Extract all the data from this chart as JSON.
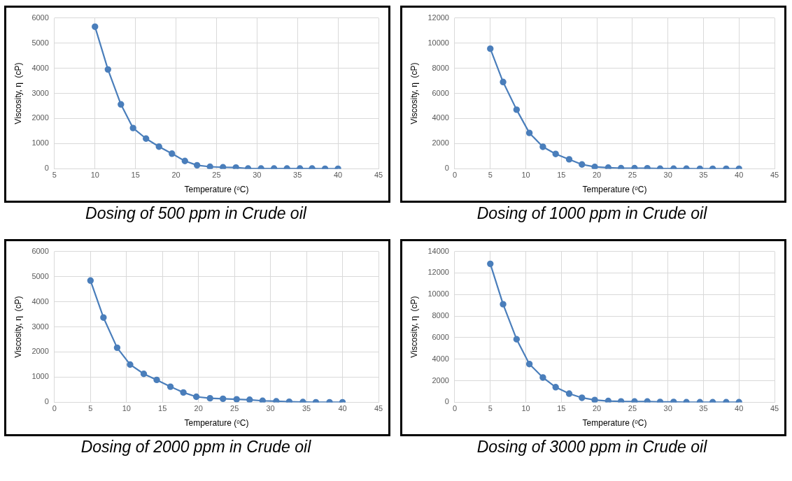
{
  "chart_data": [
    {
      "type": "line",
      "title": "Dosing of 500 ppm in Crude oil",
      "xlabel": "Temperature (ᵒC)",
      "ylabel": "Viscosity, η  (cP)",
      "x": [
        10,
        11.6,
        13.2,
        14.7,
        16.3,
        17.9,
        19.5,
        21.1,
        22.6,
        24.2,
        25.8,
        27.4,
        28.9,
        30.5,
        32.1,
        33.7,
        35.3,
        36.8,
        38.4,
        40
      ],
      "series": [
        {
          "color": "#4a7ebb",
          "values": [
            5650,
            3950,
            2560,
            1620,
            1200,
            880,
            600,
            310,
            140,
            80,
            60,
            50,
            10,
            10,
            10,
            10,
            10,
            10,
            0,
            0
          ]
        }
      ],
      "xlim": [
        5,
        45
      ],
      "xticks": [
        5,
        10,
        15,
        20,
        25,
        30,
        35,
        40,
        45
      ],
      "ylim": [
        0,
        6000
      ],
      "yticks": [
        0,
        1000,
        2000,
        3000,
        4000,
        5000,
        6000
      ],
      "grid": true,
      "legend": false,
      "marker": "circle",
      "line_style": "solid"
    },
    {
      "type": "line",
      "title": "Dosing of 1000 ppm in Crude oil",
      "xlabel": "Temperature (ᵒC)",
      "ylabel": "Viscosity, η  (cP)",
      "x": [
        5,
        6.8,
        8.7,
        10.5,
        12.4,
        14.2,
        16.1,
        17.9,
        19.7,
        21.6,
        23.4,
        25.3,
        27.1,
        28.9,
        30.8,
        32.6,
        34.5,
        36.3,
        38.2,
        40
      ],
      "series": [
        {
          "color": "#4a7ebb",
          "values": [
            9550,
            6900,
            4700,
            2850,
            1750,
            1180,
            750,
            340,
            150,
            90,
            50,
            50,
            40,
            10,
            10,
            10,
            0,
            0,
            0,
            0
          ]
        }
      ],
      "xlim": [
        0,
        45
      ],
      "xticks": [
        0,
        5,
        10,
        15,
        20,
        25,
        30,
        35,
        40,
        45
      ],
      "ylim": [
        0,
        12000
      ],
      "yticks": [
        0,
        2000,
        4000,
        6000,
        8000,
        10000,
        12000
      ],
      "grid": true,
      "legend": false,
      "marker": "circle",
      "line_style": "solid"
    },
    {
      "type": "line",
      "title": "Dosing of 2000 ppm in Crude oil",
      "xlabel": "Temperature (ᵒC)",
      "ylabel": "Viscosity, η  (cP)",
      "x": [
        5,
        6.8,
        8.7,
        10.5,
        12.4,
        14.2,
        16.1,
        17.9,
        19.7,
        21.6,
        23.4,
        25.3,
        27.1,
        28.9,
        30.8,
        32.6,
        34.5,
        36.3,
        38.2,
        40
      ],
      "series": [
        {
          "color": "#4a7ebb",
          "values": [
            4840,
            3370,
            2170,
            1500,
            1130,
            890,
            620,
            390,
            220,
            160,
            140,
            120,
            100,
            60,
            40,
            20,
            10,
            0,
            0,
            0
          ]
        }
      ],
      "xlim": [
        0,
        45
      ],
      "xticks": [
        0,
        5,
        10,
        15,
        20,
        25,
        30,
        35,
        40,
        45
      ],
      "ylim": [
        0,
        6000
      ],
      "yticks": [
        0,
        1000,
        2000,
        3000,
        4000,
        5000,
        6000
      ],
      "grid": true,
      "legend": false,
      "marker": "circle",
      "line_style": "solid"
    },
    {
      "type": "line",
      "title": "Dosing of 3000 ppm in Crude oil",
      "xlabel": "Temperature (ᵒC)",
      "ylabel": "Viscosity, η  (cP)",
      "x": [
        5,
        6.8,
        8.7,
        10.5,
        12.4,
        14.2,
        16.1,
        17.9,
        19.7,
        21.6,
        23.4,
        25.3,
        27.1,
        28.9,
        30.8,
        32.6,
        34.5,
        36.3,
        38.2,
        40
      ],
      "series": [
        {
          "color": "#4a7ebb",
          "values": [
            12850,
            9100,
            5850,
            3550,
            2300,
            1400,
            800,
            420,
            210,
            120,
            80,
            70,
            70,
            30,
            30,
            10,
            10,
            10,
            10,
            10
          ]
        }
      ],
      "xlim": [
        0,
        45
      ],
      "xticks": [
        0,
        5,
        10,
        15,
        20,
        25,
        30,
        35,
        40,
        45
      ],
      "ylim": [
        0,
        14000
      ],
      "yticks": [
        0,
        2000,
        4000,
        6000,
        8000,
        10000,
        12000,
        14000
      ],
      "grid": true,
      "legend": false,
      "marker": "circle",
      "line_style": "solid"
    }
  ]
}
